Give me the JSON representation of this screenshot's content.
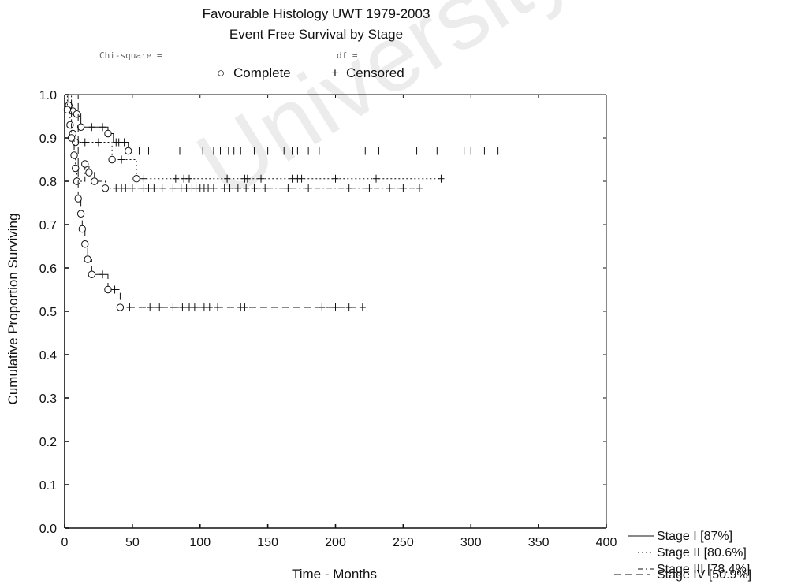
{
  "chart_data": {
    "type": "line",
    "title": "Favourable Histology UWT 1979-2003",
    "subtitle": "Event Free Survival by Stage",
    "stat_note_left": "Chi-square =",
    "stat_note_right": "df =",
    "top_legend": {
      "complete_symbol": "○",
      "complete_label": "Complete",
      "censored_symbol": "+",
      "censored_label": "Censored"
    },
    "xlabel": "Time - Months",
    "ylabel": "Cumulative Proportion Surviving",
    "xlim": [
      0,
      400
    ],
    "ylim": [
      0.0,
      1.0
    ],
    "x_ticks": [
      "0",
      "50",
      "100",
      "150",
      "200",
      "250",
      "300",
      "350",
      "400"
    ],
    "y_ticks": [
      "0.0",
      "0.1",
      "0.2",
      "0.3",
      "0.4",
      "0.5",
      "0.6",
      "0.7",
      "0.8",
      "0.9",
      "1.0"
    ],
    "grid": false,
    "legend_position": "bottom-right outside",
    "watermark": "University",
    "series": [
      {
        "name": "Stage I [87%]",
        "line_style": "solid",
        "steps": [
          [
            0,
            1.0
          ],
          [
            3,
            0.975
          ],
          [
            6,
            0.962
          ],
          [
            9,
            0.955
          ],
          [
            12,
            0.925
          ],
          [
            32,
            0.91
          ],
          [
            36,
            0.89
          ],
          [
            47,
            0.87
          ],
          [
            320,
            0.87
          ]
        ],
        "events": [
          [
            3,
            0.975
          ],
          [
            6,
            0.962
          ],
          [
            9,
            0.955
          ],
          [
            12,
            0.925
          ],
          [
            32,
            0.91
          ],
          [
            47,
            0.87
          ]
        ],
        "censored": [
          [
            20,
            0.925
          ],
          [
            28,
            0.925
          ],
          [
            40,
            0.89
          ],
          [
            44,
            0.89
          ],
          [
            55,
            0.87
          ],
          [
            62,
            0.87
          ],
          [
            85,
            0.87
          ],
          [
            102,
            0.87
          ],
          [
            110,
            0.87
          ],
          [
            115,
            0.87
          ],
          [
            121,
            0.87
          ],
          [
            125,
            0.87
          ],
          [
            130,
            0.87
          ],
          [
            140,
            0.87
          ],
          [
            150,
            0.87
          ],
          [
            162,
            0.87
          ],
          [
            168,
            0.87
          ],
          [
            172,
            0.87
          ],
          [
            180,
            0.87
          ],
          [
            188,
            0.87
          ],
          [
            222,
            0.87
          ],
          [
            232,
            0.87
          ],
          [
            260,
            0.87
          ],
          [
            275,
            0.87
          ],
          [
            292,
            0.87
          ],
          [
            295,
            0.87
          ],
          [
            300,
            0.87
          ],
          [
            310,
            0.87
          ],
          [
            320,
            0.87
          ]
        ]
      },
      {
        "name": "Stage II [80.6%]",
        "line_style": "dotted",
        "steps": [
          [
            0,
            1.0
          ],
          [
            2,
            0.965
          ],
          [
            4,
            0.93
          ],
          [
            6,
            0.91
          ],
          [
            8,
            0.89
          ],
          [
            35,
            0.85
          ],
          [
            53,
            0.806
          ],
          [
            278,
            0.806
          ]
        ],
        "events": [
          [
            2,
            0.965
          ],
          [
            4,
            0.93
          ],
          [
            6,
            0.91
          ],
          [
            8,
            0.89
          ],
          [
            35,
            0.85
          ],
          [
            53,
            0.806
          ]
        ],
        "censored": [
          [
            15,
            0.89
          ],
          [
            25,
            0.89
          ],
          [
            38,
            0.89
          ],
          [
            42,
            0.85
          ],
          [
            58,
            0.806
          ],
          [
            82,
            0.806
          ],
          [
            88,
            0.806
          ],
          [
            92,
            0.806
          ],
          [
            120,
            0.806
          ],
          [
            133,
            0.806
          ],
          [
            135,
            0.806
          ],
          [
            145,
            0.806
          ],
          [
            168,
            0.806
          ],
          [
            172,
            0.806
          ],
          [
            175,
            0.806
          ],
          [
            200,
            0.806
          ],
          [
            230,
            0.806
          ],
          [
            278,
            0.806
          ]
        ]
      },
      {
        "name": "Stage III [78.4%]",
        "line_style": "dash-dot",
        "steps": [
          [
            0,
            1.0
          ],
          [
            5,
            0.9
          ],
          [
            7,
            0.86
          ],
          [
            8,
            0.83
          ],
          [
            9,
            0.8
          ],
          [
            15,
            0.84
          ],
          [
            18,
            0.82
          ],
          [
            22,
            0.8
          ],
          [
            30,
            0.784
          ],
          [
            262,
            0.784
          ]
        ],
        "events": [
          [
            5,
            0.9
          ],
          [
            7,
            0.86
          ],
          [
            8,
            0.83
          ],
          [
            9,
            0.8
          ],
          [
            15,
            0.84
          ],
          [
            18,
            0.82
          ],
          [
            22,
            0.8
          ],
          [
            30,
            0.784
          ]
        ],
        "censored": [
          [
            38,
            0.784
          ],
          [
            42,
            0.784
          ],
          [
            45,
            0.784
          ],
          [
            50,
            0.784
          ],
          [
            58,
            0.784
          ],
          [
            62,
            0.784
          ],
          [
            66,
            0.784
          ],
          [
            72,
            0.784
          ],
          [
            80,
            0.784
          ],
          [
            86,
            0.784
          ],
          [
            90,
            0.784
          ],
          [
            94,
            0.784
          ],
          [
            97,
            0.784
          ],
          [
            100,
            0.784
          ],
          [
            103,
            0.784
          ],
          [
            106,
            0.784
          ],
          [
            110,
            0.784
          ],
          [
            118,
            0.784
          ],
          [
            122,
            0.784
          ],
          [
            128,
            0.784
          ],
          [
            134,
            0.784
          ],
          [
            140,
            0.784
          ],
          [
            148,
            0.784
          ],
          [
            165,
            0.784
          ],
          [
            180,
            0.784
          ],
          [
            210,
            0.784
          ],
          [
            225,
            0.784
          ],
          [
            240,
            0.784
          ],
          [
            250,
            0.784
          ],
          [
            262,
            0.784
          ]
        ]
      },
      {
        "name": "Stage IV [50.9%]",
        "line_style": "dashed",
        "steps": [
          [
            0,
            1.0
          ],
          [
            10,
            0.76
          ],
          [
            12,
            0.725
          ],
          [
            13,
            0.69
          ],
          [
            15,
            0.655
          ],
          [
            17,
            0.62
          ],
          [
            20,
            0.585
          ],
          [
            32,
            0.55
          ],
          [
            41,
            0.509
          ],
          [
            220,
            0.509
          ]
        ],
        "events": [
          [
            10,
            0.76
          ],
          [
            12,
            0.725
          ],
          [
            13,
            0.69
          ],
          [
            15,
            0.655
          ],
          [
            17,
            0.62
          ],
          [
            20,
            0.585
          ],
          [
            32,
            0.55
          ],
          [
            41,
            0.509
          ]
        ],
        "censored": [
          [
            28,
            0.585
          ],
          [
            37,
            0.55
          ],
          [
            48,
            0.509
          ],
          [
            63,
            0.509
          ],
          [
            70,
            0.509
          ],
          [
            80,
            0.509
          ],
          [
            87,
            0.509
          ],
          [
            92,
            0.509
          ],
          [
            96,
            0.509
          ],
          [
            103,
            0.509
          ],
          [
            107,
            0.509
          ],
          [
            113,
            0.509
          ],
          [
            130,
            0.509
          ],
          [
            133,
            0.509
          ],
          [
            190,
            0.509
          ],
          [
            200,
            0.509
          ],
          [
            210,
            0.509
          ],
          [
            220,
            0.509
          ]
        ]
      }
    ]
  }
}
